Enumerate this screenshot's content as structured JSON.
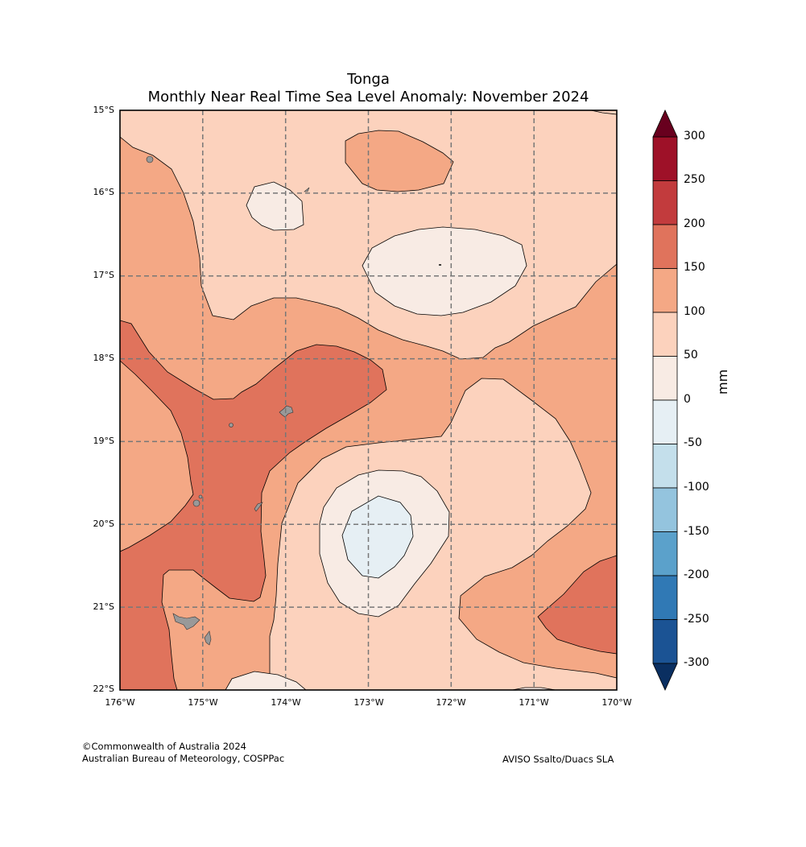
{
  "title_line1": "Tonga",
  "title_line2": "Monthly Near Real Time Sea Level Anomaly: November 2024",
  "lat_labels": [
    "15°S",
    "16°S",
    "17°S",
    "18°S",
    "19°S",
    "20°S",
    "21°S",
    "22°S"
  ],
  "lon_labels": [
    "176°W",
    "175°W",
    "174°W",
    "173°W",
    "172°W",
    "171°W",
    "170°W"
  ],
  "colorbar": {
    "unit": "mm",
    "ticks": [
      "300",
      "250",
      "200",
      "150",
      "100",
      "50",
      "0",
      "-50",
      "-100",
      "-150",
      "-200",
      "-250",
      "-300"
    ],
    "colors": [
      "#9e1128",
      "#c23b3d",
      "#e0735c",
      "#f4a885",
      "#fcd2bd",
      "#f8ebe4",
      "#e6eff4",
      "#c4dfeb",
      "#94c4de",
      "#5ba1cb",
      "#3079b5",
      "#1b5394"
    ],
    "over_color": "#68001e",
    "under_color": "#0a2f61"
  },
  "credits": {
    "line1": "©Commonwealth of Australia 2024",
    "line2": "Australian Bureau of Meteorology, COSPPac",
    "source": "AVISO Ssalto/Duacs SLA"
  }
}
